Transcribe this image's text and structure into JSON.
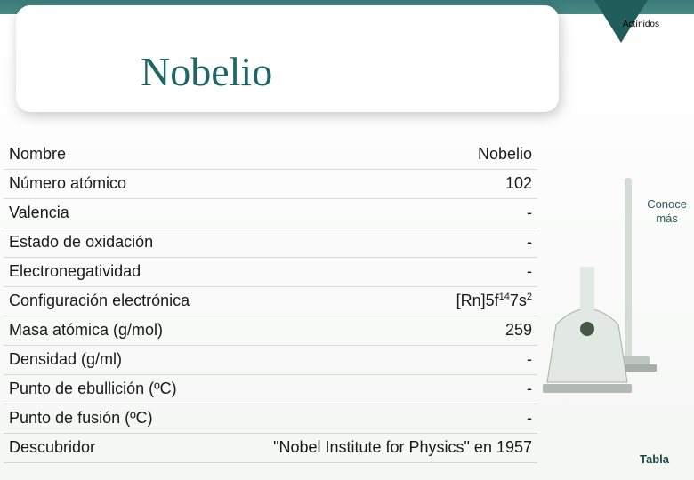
{
  "title": "Nobelio",
  "top_tab": "Actínidos",
  "title_color": "#1e6664",
  "rows": [
    {
      "key": "Nombre",
      "val": "Nobelio"
    },
    {
      "key": "Número atómico",
      "val": "102"
    },
    {
      "key": "Valencia",
      "val": "-"
    },
    {
      "key": "Estado de oxidación",
      "val": "-"
    },
    {
      "key": "Electronegatividad",
      "val": "-"
    },
    {
      "key": "Configuración electrónica",
      "val": "[Rn]5f¹⁴7s²",
      "val_html": "[Rn]5f<span class=\"sup\">14</span>7s<span class=\"sup\">2</span>"
    },
    {
      "key": "Masa atómica (g/mol)",
      "val": "259"
    },
    {
      "key": "Densidad (g/ml)",
      "val": "-"
    },
    {
      "key": "Punto de ebullición (ºC)",
      "val": "-"
    },
    {
      "key": "Punto de fusión (ºC)",
      "val": "-"
    },
    {
      "key": "Descubridor",
      "val": "\"Nobel Institute for Physics\" en 1957"
    }
  ],
  "side": {
    "conoce": "Conoce\nmás",
    "tabla": "Tabla",
    "conoce_color": "#2a5a54",
    "tabla_color": "#1a4a44"
  }
}
